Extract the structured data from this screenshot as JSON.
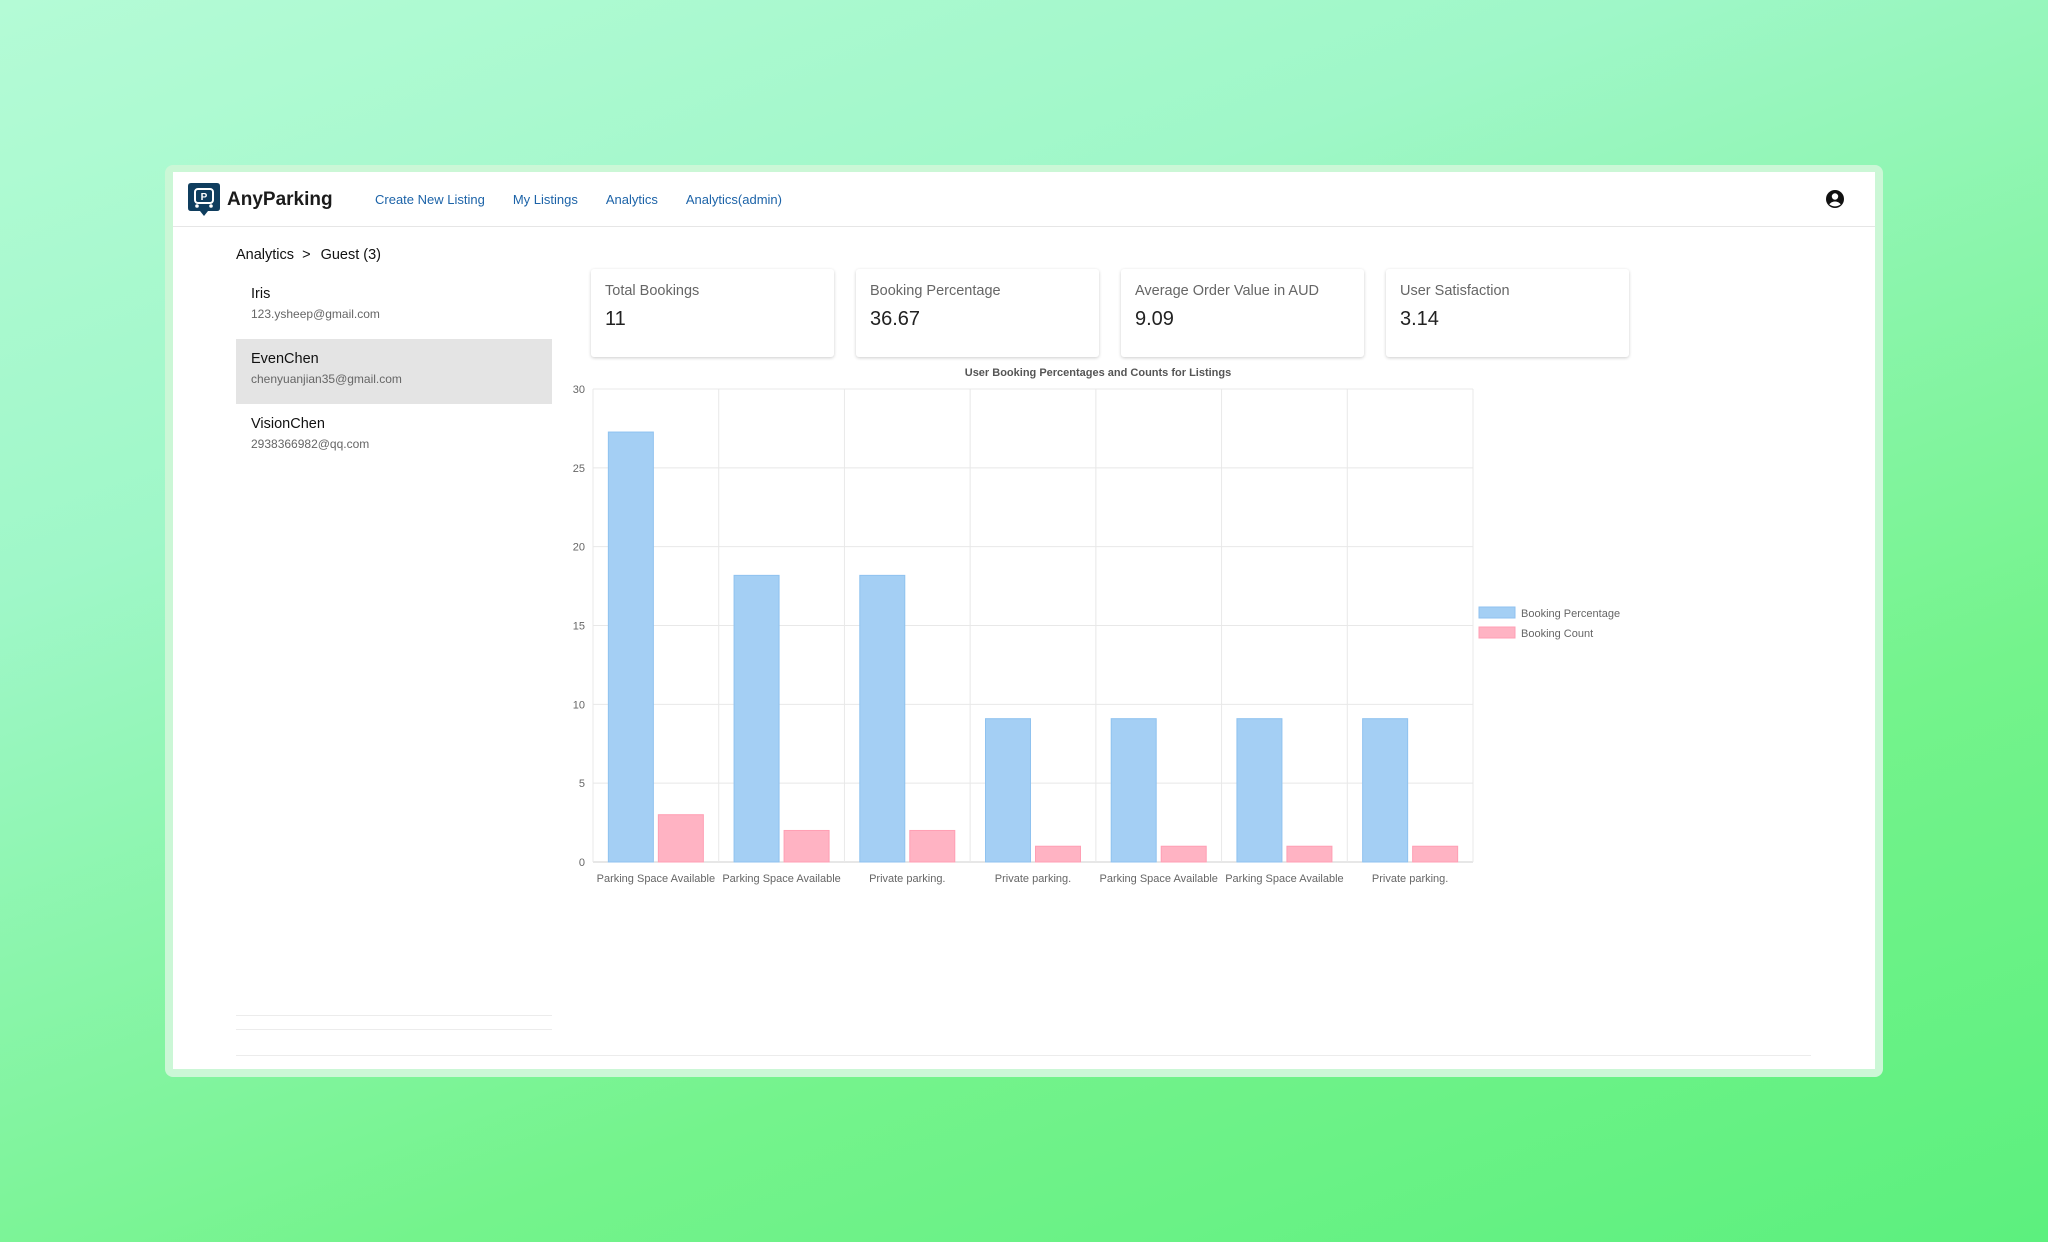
{
  "app": {
    "brand": "AnyParking",
    "nav": [
      "Create New Listing",
      "My Listings",
      "Analytics",
      "Analytics(admin)"
    ]
  },
  "breadcrumb": {
    "root": "Analytics",
    "separator": ">",
    "current": "Guest (3)"
  },
  "guests": [
    {
      "name": "Iris",
      "email": "123.ysheep@gmail.com",
      "selected": false
    },
    {
      "name": "EvenChen",
      "email": "chenyuanjian35@gmail.com",
      "selected": true
    },
    {
      "name": "VisionChen",
      "email": "2938366982@qq.com",
      "selected": false
    }
  ],
  "kpis": [
    {
      "label": "Total Bookings",
      "value": "11"
    },
    {
      "label": "Booking Percentage",
      "value": "36.67"
    },
    {
      "label": "Average Order Value in AUD",
      "value": "9.09"
    },
    {
      "label": "User Satisfaction",
      "value": "3.14"
    }
  ],
  "colors": {
    "accent": "#1c63a8",
    "brand_icon": "#0f3d5e",
    "booking_percentage": "#a4cff4",
    "booking_count": "#ffb3c3"
  },
  "icons": {
    "logo": "parking-logo-icon",
    "account": "account-circle-icon"
  },
  "chart_data": {
    "type": "bar",
    "title": "User Booking Percentages and Counts for Listings",
    "categories": [
      "Parking Space Available",
      "Parking Space Available",
      "Private parking.",
      "Private parking.",
      "Parking Space Available",
      "Parking Space Available",
      "Private parking."
    ],
    "series": [
      {
        "name": "Booking Percentage",
        "values": [
          27.27,
          18.18,
          18.18,
          9.09,
          9.09,
          9.09,
          9.09
        ]
      },
      {
        "name": "Booking Count",
        "values": [
          3,
          2,
          2,
          1,
          1,
          1,
          1
        ]
      }
    ],
    "ylim": [
      0,
      30
    ],
    "yticks": [
      0,
      5,
      10,
      15,
      20,
      25,
      30
    ],
    "grid": true,
    "legend": "right"
  }
}
